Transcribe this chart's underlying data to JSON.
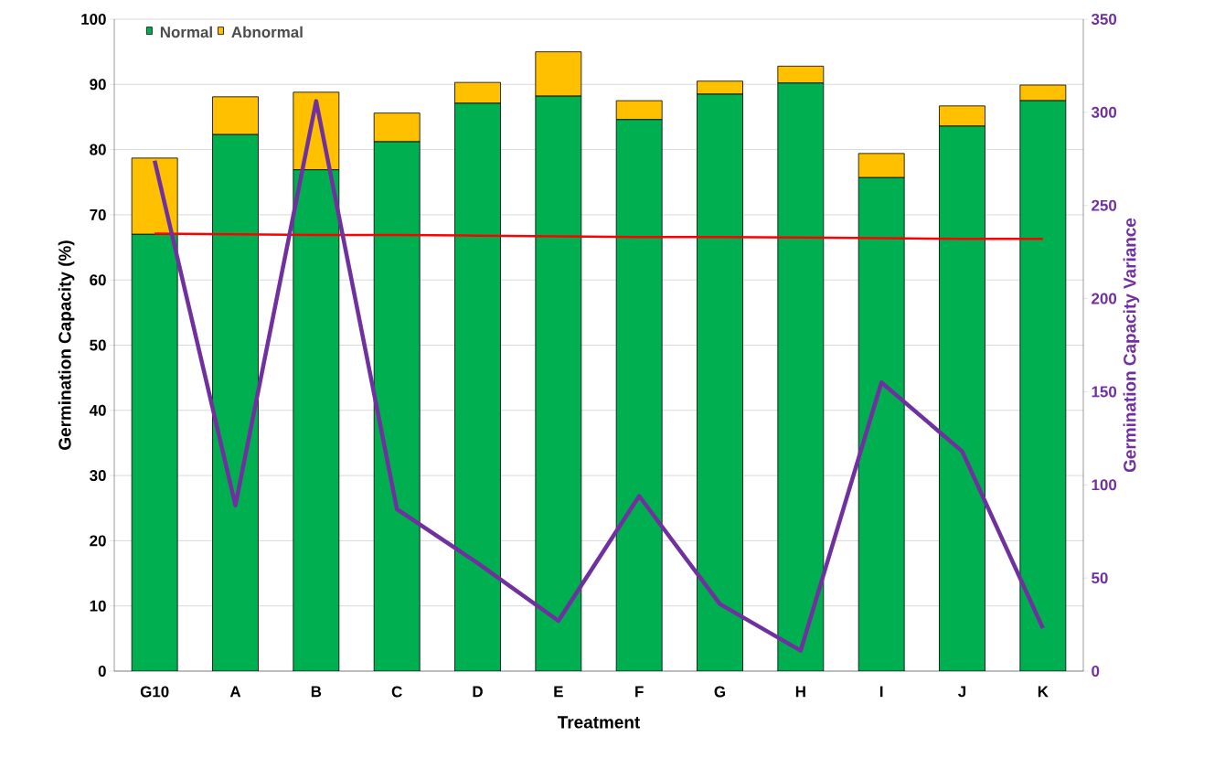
{
  "chart_data": {
    "type": "bar",
    "stacked": true,
    "xlabel": "Treatment",
    "ylabel": "Germination Capacity (%)",
    "y2label": "Germination Capacity Variance",
    "categories": [
      "G10",
      "A",
      "B",
      "C",
      "D",
      "E",
      "F",
      "G",
      "H",
      "I",
      "J",
      "K"
    ],
    "series": [
      {
        "name": "Normal",
        "color": "#00b050",
        "values": [
          67,
          82.3,
          76.9,
          81.2,
          87.1,
          88.2,
          84.6,
          88.5,
          90.2,
          75.7,
          83.6,
          87.5
        ]
      },
      {
        "name": "Abnormal",
        "color": "#ffc000",
        "values": [
          11.7,
          5.8,
          11.9,
          4.4,
          3.2,
          6.8,
          2.9,
          2.0,
          2.6,
          3.7,
          3.1,
          2.4
        ]
      },
      {
        "type": "line",
        "color": "#ff0000",
        "values": [
          67.1,
          67.0,
          66.9,
          66.9,
          66.8,
          66.7,
          66.6,
          66.6,
          66.5,
          66.4,
          66.3,
          66.3
        ]
      },
      {
        "type": "line",
        "axis": "y2",
        "color": "#7030a0",
        "values": [
          274,
          89,
          306,
          87,
          58,
          27,
          94,
          36,
          11,
          155,
          118,
          23
        ]
      }
    ],
    "ylim": [
      0,
      100
    ],
    "yticks": [
      0,
      10,
      20,
      30,
      40,
      50,
      60,
      70,
      80,
      90,
      100
    ],
    "y2lim": [
      0,
      350
    ],
    "y2ticks": [
      0,
      50,
      100,
      150,
      200,
      250,
      300,
      350
    ],
    "grid": "y",
    "legend": "top left"
  }
}
